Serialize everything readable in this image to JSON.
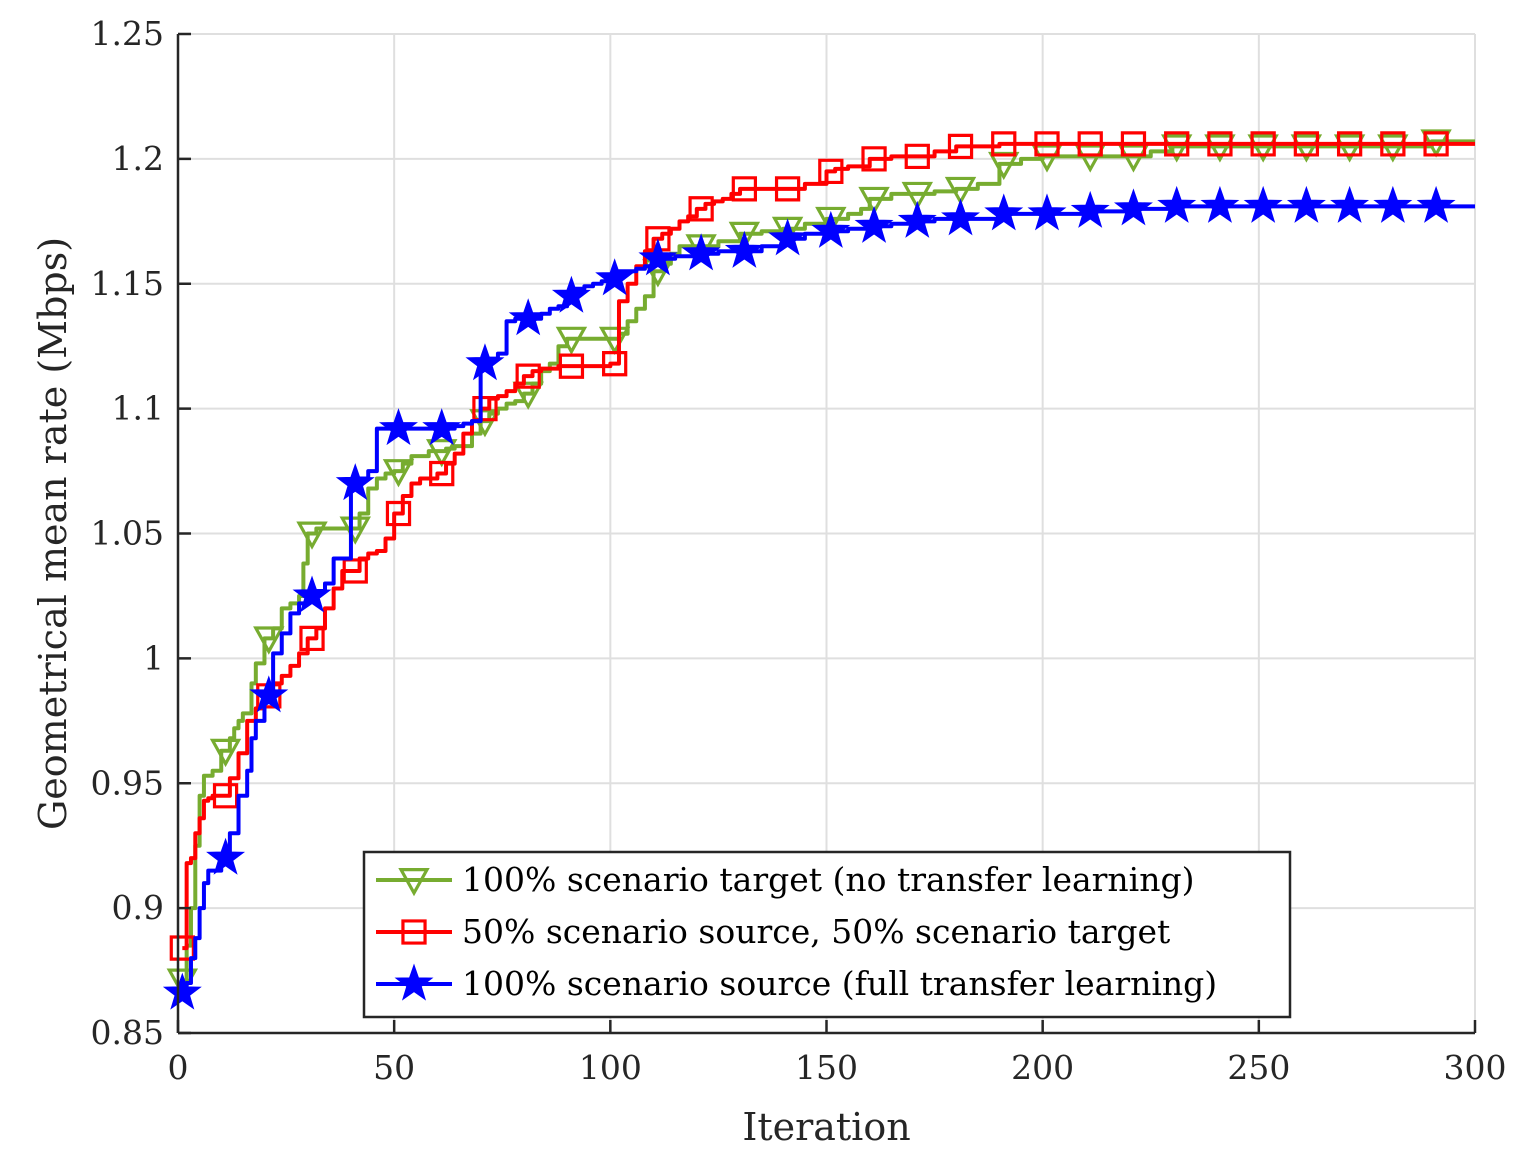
{
  "chart_data": {
    "type": "line",
    "title": "",
    "xlabel": "Iteration",
    "ylabel": "Geometrical mean rate (Mbps)",
    "xlim": [
      0,
      300
    ],
    "ylim": [
      0.85,
      1.25
    ],
    "xticks": [
      0,
      50,
      100,
      150,
      200,
      250,
      300
    ],
    "xtick_labels": [
      "0",
      "50",
      "100",
      "150",
      "200",
      "250",
      "300"
    ],
    "yticks": [
      0.85,
      0.9,
      0.95,
      1.0,
      1.05,
      1.1,
      1.15,
      1.2,
      1.25
    ],
    "ytick_labels": [
      "0.85",
      "0.9",
      "0.95",
      "1",
      "1.05",
      "1.1",
      "1.15",
      "1.2",
      "1.25"
    ],
    "grid": true,
    "legend_position": "bottom-center",
    "series": [
      {
        "name": "100% scenario target (no transfer learning)",
        "color": "#77ac30",
        "marker": "triangle-down",
        "step": true,
        "x": [
          1,
          2,
          3,
          4,
          5,
          6,
          8,
          10,
          12,
          13,
          14,
          15,
          17,
          18,
          20,
          22,
          24,
          26,
          28,
          29,
          30,
          32,
          34,
          36,
          38,
          40,
          42,
          44,
          46,
          48,
          50,
          52,
          54,
          56,
          58,
          60,
          62,
          64,
          66,
          68,
          70,
          72,
          74,
          76,
          78,
          80,
          82,
          84,
          86,
          88,
          90,
          95,
          100,
          102,
          104,
          106,
          108,
          110,
          112,
          114,
          116,
          118,
          120,
          125,
          130,
          135,
          140,
          145,
          150,
          155,
          158,
          160,
          165,
          170,
          175,
          180,
          185,
          190,
          195,
          200,
          205,
          210,
          215,
          220,
          225,
          230,
          240,
          250,
          260,
          270,
          280,
          290,
          300
        ],
        "y": [
          0.871,
          0.885,
          0.9,
          0.925,
          0.945,
          0.953,
          0.955,
          0.963,
          0.968,
          0.972,
          0.975,
          0.978,
          0.99,
          0.998,
          1.008,
          1.012,
          1.02,
          1.022,
          1.025,
          1.038,
          1.05,
          1.052,
          1.052,
          1.052,
          1.052,
          1.052,
          1.058,
          1.068,
          1.072,
          1.074,
          1.075,
          1.078,
          1.081,
          1.081,
          1.083,
          1.083,
          1.084,
          1.085,
          1.085,
          1.09,
          1.095,
          1.098,
          1.1,
          1.102,
          1.103,
          1.106,
          1.11,
          1.115,
          1.118,
          1.125,
          1.128,
          1.128,
          1.128,
          1.13,
          1.135,
          1.14,
          1.145,
          1.155,
          1.158,
          1.162,
          1.165,
          1.165,
          1.165,
          1.167,
          1.17,
          1.171,
          1.172,
          1.174,
          1.176,
          1.178,
          1.18,
          1.184,
          1.186,
          1.186,
          1.187,
          1.188,
          1.19,
          1.198,
          1.2,
          1.201,
          1.201,
          1.201,
          1.201,
          1.201,
          1.203,
          1.205,
          1.205,
          1.205,
          1.205,
          1.205,
          1.205,
          1.207,
          1.207
        ],
        "marker_x": [
          1,
          11,
          21,
          31,
          41,
          51,
          61,
          71,
          81,
          91,
          101,
          111,
          121,
          131,
          141,
          151,
          161,
          171,
          181,
          191,
          201,
          211,
          221,
          231,
          241,
          251,
          261,
          271,
          281,
          291
        ]
      },
      {
        "name": "50% scenario source, 50% scenario target",
        "color": "#ff0000",
        "marker": "square",
        "step": true,
        "x": [
          1,
          2,
          3,
          4,
          5,
          6,
          7,
          8,
          10,
          12,
          14,
          16,
          18,
          20,
          22,
          24,
          26,
          28,
          30,
          32,
          34,
          36,
          38,
          40,
          42,
          44,
          46,
          48,
          50,
          52,
          54,
          56,
          58,
          60,
          62,
          64,
          66,
          68,
          70,
          72,
          74,
          76,
          78,
          80,
          82,
          84,
          86,
          88,
          90,
          95,
          100,
          102,
          104,
          106,
          108,
          110,
          112,
          114,
          116,
          118,
          120,
          122,
          124,
          126,
          128,
          130,
          135,
          140,
          145,
          150,
          152,
          155,
          160,
          165,
          170,
          175,
          180,
          185,
          190,
          200,
          210,
          220,
          230,
          240,
          250,
          260,
          270,
          280,
          290,
          300
        ],
        "y": [
          0.884,
          0.918,
          0.92,
          0.93,
          0.936,
          0.943,
          0.944,
          0.945,
          0.945,
          0.952,
          0.962,
          0.975,
          0.98,
          0.985,
          0.99,
          0.993,
          0.997,
          1.002,
          1.008,
          1.012,
          1.02,
          1.028,
          1.035,
          1.035,
          1.04,
          1.042,
          1.043,
          1.048,
          1.058,
          1.065,
          1.07,
          1.072,
          1.072,
          1.074,
          1.078,
          1.082,
          1.09,
          1.095,
          1.1,
          1.104,
          1.105,
          1.107,
          1.11,
          1.113,
          1.115,
          1.116,
          1.116,
          1.117,
          1.117,
          1.117,
          1.118,
          1.143,
          1.15,
          1.157,
          1.163,
          1.168,
          1.17,
          1.172,
          1.175,
          1.177,
          1.18,
          1.182,
          1.183,
          1.184,
          1.186,
          1.188,
          1.188,
          1.188,
          1.19,
          1.195,
          1.196,
          1.197,
          1.2,
          1.201,
          1.201,
          1.203,
          1.205,
          1.205,
          1.206,
          1.206,
          1.206,
          1.206,
          1.206,
          1.206,
          1.206,
          1.206,
          1.206,
          1.206,
          1.206,
          1.206
        ],
        "marker_x": [
          1,
          11,
          21,
          31,
          41,
          51,
          61,
          71,
          81,
          91,
          101,
          111,
          121,
          131,
          141,
          151,
          161,
          171,
          181,
          191,
          201,
          211,
          221,
          231,
          241,
          251,
          261,
          271,
          281,
          291
        ]
      },
      {
        "name": "100% scenario source (full transfer learning)",
        "color": "#0000ff",
        "marker": "star",
        "step": true,
        "x": [
          1,
          2,
          3,
          4,
          5,
          6,
          7,
          8,
          10,
          12,
          14,
          16,
          17,
          18,
          20,
          22,
          24,
          26,
          28,
          30,
          32,
          34,
          36,
          38,
          40,
          42,
          44,
          46,
          48,
          50,
          52,
          54,
          56,
          58,
          60,
          62,
          64,
          66,
          68,
          70,
          72,
          74,
          76,
          78,
          80,
          82,
          84,
          86,
          88,
          90,
          92,
          94,
          96,
          98,
          100,
          102,
          104,
          106,
          108,
          110,
          115,
          120,
          125,
          130,
          135,
          140,
          145,
          150,
          155,
          160,
          165,
          170,
          175,
          180,
          190,
          200,
          210,
          220,
          230,
          240,
          250,
          260,
          270,
          280,
          290,
          300
        ],
        "y": [
          0.866,
          0.87,
          0.88,
          0.888,
          0.9,
          0.91,
          0.915,
          0.915,
          0.92,
          0.93,
          0.945,
          0.955,
          0.968,
          0.975,
          0.985,
          1.002,
          1.01,
          1.018,
          1.022,
          1.025,
          1.027,
          1.03,
          1.04,
          1.04,
          1.07,
          1.072,
          1.075,
          1.092,
          1.092,
          1.092,
          1.092,
          1.092,
          1.092,
          1.092,
          1.092,
          1.092,
          1.093,
          1.094,
          1.095,
          1.118,
          1.12,
          1.122,
          1.135,
          1.136,
          1.136,
          1.136,
          1.138,
          1.14,
          1.141,
          1.145,
          1.148,
          1.149,
          1.15,
          1.151,
          1.152,
          1.155,
          1.155,
          1.156,
          1.157,
          1.16,
          1.161,
          1.162,
          1.163,
          1.163,
          1.165,
          1.168,
          1.17,
          1.171,
          1.172,
          1.173,
          1.174,
          1.175,
          1.176,
          1.176,
          1.178,
          1.178,
          1.179,
          1.18,
          1.181,
          1.181,
          1.181,
          1.181,
          1.181,
          1.181,
          1.181,
          1.181
        ],
        "marker_x": [
          1,
          11,
          21,
          31,
          41,
          51,
          61,
          71,
          81,
          91,
          101,
          111,
          121,
          131,
          141,
          151,
          161,
          171,
          181,
          191,
          201,
          211,
          221,
          231,
          241,
          251,
          261,
          271,
          281,
          291
        ]
      }
    ]
  }
}
